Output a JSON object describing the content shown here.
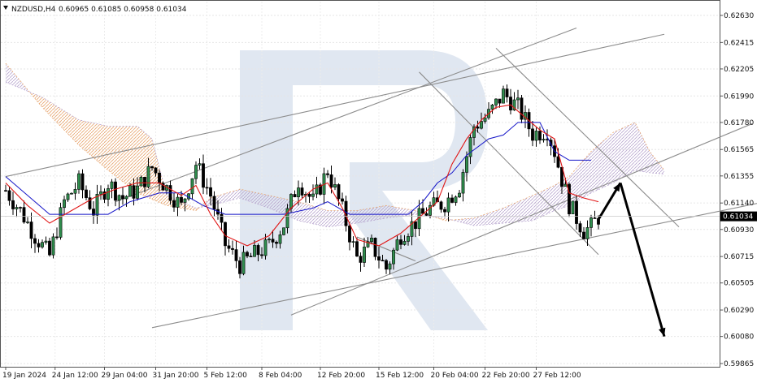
{
  "header": {
    "symbol": "NZDUSD,H4",
    "ohlc": "0.60965 0.61085 0.60958 0.61034"
  },
  "chart_data": {
    "type": "candlestick",
    "title": "NZDUSD,H4",
    "symbol": "NZDUSD",
    "timeframe": "H4",
    "last_price": 0.61034,
    "last_price_label": "0.61034",
    "ohlc_current": {
      "open": 0.60965,
      "high": 0.61085,
      "low": 0.60958,
      "close": 0.61034
    },
    "ylim": [
      0.59865,
      0.6263
    ],
    "y_ticks": [
      "0.62630",
      "0.62415",
      "0.62205",
      "0.61990",
      "0.61780",
      "0.61565",
      "0.61355",
      "0.61140",
      "0.60930",
      "0.60715",
      "0.60505",
      "0.60290",
      "0.60080",
      "0.59865"
    ],
    "x_ticks": [
      "19 Jan 2024",
      "24 Jan 12:00",
      "29 Jan 04:00",
      "31 Jan 20:00",
      "5 Feb 12:00",
      "8 Feb 04:00",
      "12 Feb 20:00",
      "15 Feb 12:00",
      "20 Feb 04:00",
      "22 Feb 20:00",
      "27 Feb 12:00"
    ],
    "close_path": [
      [
        0,
        0.6124
      ],
      [
        4,
        0.6108
      ],
      [
        8,
        0.6088
      ],
      [
        12,
        0.6072
      ],
      [
        16,
        0.6115
      ],
      [
        20,
        0.613
      ],
      [
        24,
        0.6108
      ],
      [
        28,
        0.613
      ],
      [
        32,
        0.6118
      ],
      [
        36,
        0.6125
      ],
      [
        40,
        0.6142
      ],
      [
        44,
        0.6126
      ],
      [
        48,
        0.6111
      ],
      [
        52,
        0.6145
      ],
      [
        56,
        0.612
      ],
      [
        60,
        0.6081
      ],
      [
        64,
        0.6065
      ],
      [
        68,
        0.6073
      ],
      [
        72,
        0.608
      ],
      [
        76,
        0.6097
      ],
      [
        80,
        0.6132
      ],
      [
        84,
        0.6115
      ],
      [
        88,
        0.614
      ],
      [
        92,
        0.6108
      ],
      [
        96,
        0.607
      ],
      [
        100,
        0.608
      ],
      [
        104,
        0.6062
      ],
      [
        108,
        0.6089
      ],
      [
        112,
        0.6099
      ],
      [
        116,
        0.611
      ],
      [
        120,
        0.6114
      ],
      [
        124,
        0.6128
      ],
      [
        128,
        0.6175
      ],
      [
        132,
        0.6184
      ],
      [
        136,
        0.6201
      ],
      [
        140,
        0.619
      ],
      [
        144,
        0.6169
      ],
      [
        148,
        0.6172
      ],
      [
        150,
        0.6155
      ],
      [
        152,
        0.6133
      ],
      [
        154,
        0.6113
      ],
      [
        156,
        0.6102
      ],
      [
        158,
        0.6092
      ],
      [
        160,
        0.6095
      ],
      [
        162,
        0.6103
      ]
    ],
    "kijun_path": [
      [
        0,
        0.6135
      ],
      [
        6,
        0.612
      ],
      [
        12,
        0.6105
      ],
      [
        20,
        0.6105
      ],
      [
        28,
        0.6105
      ],
      [
        34,
        0.6115
      ],
      [
        42,
        0.6122
      ],
      [
        48,
        0.6122
      ],
      [
        54,
        0.6112
      ],
      [
        60,
        0.6105
      ],
      [
        68,
        0.6105
      ],
      [
        76,
        0.6105
      ],
      [
        84,
        0.611
      ],
      [
        88,
        0.6115
      ],
      [
        94,
        0.6105
      ],
      [
        110,
        0.6105
      ],
      [
        114,
        0.6115
      ],
      [
        118,
        0.613
      ],
      [
        122,
        0.6138
      ],
      [
        126,
        0.6152
      ],
      [
        132,
        0.6165
      ],
      [
        136,
        0.6168
      ],
      [
        140,
        0.6178
      ],
      [
        146,
        0.6178
      ],
      [
        150,
        0.6155
      ],
      [
        154,
        0.6148
      ],
      [
        160,
        0.6148
      ]
    ],
    "tenkan_path": [
      [
        0,
        0.613
      ],
      [
        6,
        0.6112
      ],
      [
        12,
        0.6098
      ],
      [
        18,
        0.6108
      ],
      [
        24,
        0.6118
      ],
      [
        30,
        0.6125
      ],
      [
        36,
        0.613
      ],
      [
        42,
        0.613
      ],
      [
        48,
        0.612
      ],
      [
        52,
        0.6128
      ],
      [
        56,
        0.6105
      ],
      [
        60,
        0.6088
      ],
      [
        66,
        0.608
      ],
      [
        72,
        0.6088
      ],
      [
        78,
        0.611
      ],
      [
        84,
        0.6125
      ],
      [
        88,
        0.613
      ],
      [
        92,
        0.611
      ],
      [
        96,
        0.6085
      ],
      [
        102,
        0.608
      ],
      [
        108,
        0.609
      ],
      [
        114,
        0.6105
      ],
      [
        118,
        0.6115
      ],
      [
        122,
        0.6145
      ],
      [
        126,
        0.6165
      ],
      [
        130,
        0.618
      ],
      [
        134,
        0.619
      ],
      [
        138,
        0.6192
      ],
      [
        142,
        0.6182
      ],
      [
        146,
        0.6172
      ],
      [
        150,
        0.6165
      ],
      [
        154,
        0.6122
      ],
      [
        158,
        0.6118
      ],
      [
        162,
        0.6115
      ]
    ],
    "cloud_span_a": [
      [
        0,
        0.6225
      ],
      [
        10,
        0.619
      ],
      [
        20,
        0.616
      ],
      [
        28,
        0.614
      ],
      [
        36,
        0.6122
      ],
      [
        44,
        0.6112
      ],
      [
        52,
        0.6108
      ],
      [
        56,
        0.6118
      ],
      [
        64,
        0.6125
      ],
      [
        72,
        0.612
      ],
      [
        80,
        0.6115
      ],
      [
        88,
        0.6108
      ],
      [
        96,
        0.6108
      ],
      [
        104,
        0.6112
      ],
      [
        112,
        0.6108
      ],
      [
        120,
        0.61
      ],
      [
        128,
        0.6102
      ],
      [
        136,
        0.611
      ],
      [
        144,
        0.612
      ],
      [
        150,
        0.6128
      ],
      [
        154,
        0.6135
      ],
      [
        160,
        0.6155
      ],
      [
        166,
        0.617
      ],
      [
        172,
        0.6178
      ],
      [
        176,
        0.6155
      ],
      [
        180,
        0.614
      ]
    ],
    "cloud_span_b": [
      [
        0,
        0.621
      ],
      [
        10,
        0.6198
      ],
      [
        20,
        0.618
      ],
      [
        28,
        0.6175
      ],
      [
        36,
        0.6175
      ],
      [
        40,
        0.6165
      ],
      [
        44,
        0.612
      ],
      [
        52,
        0.611
      ],
      [
        56,
        0.6112
      ],
      [
        64,
        0.6118
      ],
      [
        72,
        0.611
      ],
      [
        80,
        0.61
      ],
      [
        88,
        0.6095
      ],
      [
        96,
        0.6098
      ],
      [
        104,
        0.6102
      ],
      [
        112,
        0.6105
      ],
      [
        120,
        0.6102
      ],
      [
        128,
        0.6096
      ],
      [
        136,
        0.6098
      ],
      [
        144,
        0.61
      ],
      [
        150,
        0.6108
      ],
      [
        154,
        0.6112
      ],
      [
        160,
        0.6122
      ],
      [
        166,
        0.613
      ],
      [
        172,
        0.614
      ],
      [
        176,
        0.6138
      ],
      [
        180,
        0.6137
      ]
    ],
    "trend_lines": [
      {
        "points": [
          [
            0,
            0.6135
          ],
          [
            180,
            0.6248
          ]
        ]
      },
      {
        "points": [
          [
            30,
            0.6115
          ],
          [
            156,
            0.6253
          ]
        ]
      },
      {
        "points": [
          [
            112,
            0.6068
          ],
          [
            96,
            0.6087
          ]
        ]
      },
      {
        "points": [
          [
            78,
            0.6025
          ],
          [
            204,
            0.6177
          ]
        ]
      },
      {
        "points": [
          [
            40,
            0.6015
          ],
          [
            216,
            0.612
          ]
        ]
      },
      {
        "points": [
          [
            113,
            0.6218
          ],
          [
            162,
            0.6073
          ]
        ]
      },
      {
        "points": [
          [
            134,
            0.6237
          ],
          [
            184,
            0.6095
          ]
        ]
      }
    ],
    "forecast": [
      {
        "from": [
          162,
          0.6101
        ],
        "to": [
          168,
          0.613
        ]
      },
      {
        "from": [
          168,
          0.613
        ],
        "to": [
          180,
          0.6008
        ]
      }
    ]
  },
  "watermark": {
    "brand_letter": "R",
    "color": "#c7d3e6"
  }
}
